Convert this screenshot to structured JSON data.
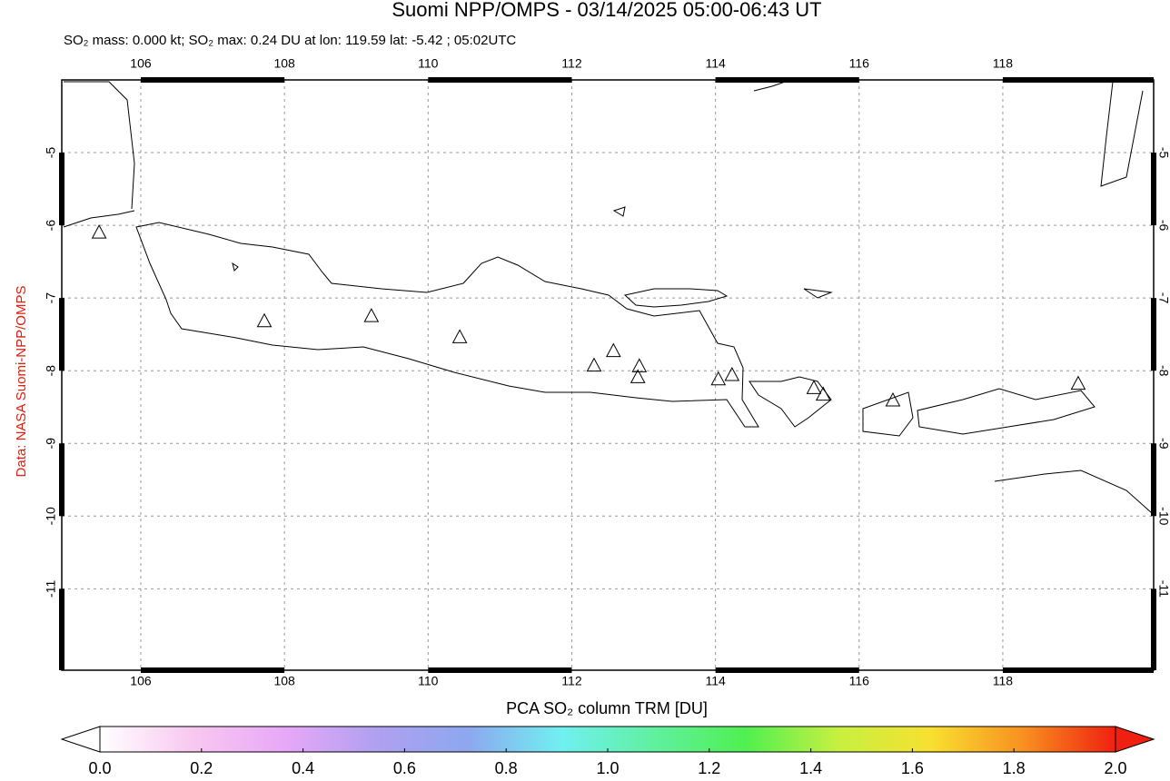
{
  "chart_data": {
    "type": "map",
    "title": "Suomi NPP/OMPS - 03/14/2025 05:00-06:43 UT",
    "subtitle": "SO₂ mass: 0.000 kt; SO₂ max: 0.24 DU at lon: 119.59 lat: -5.42 ; 05:02UTC",
    "credit": "Data: NASA Suomi-NPP/OMPS",
    "xlim": [
      104.9,
      120.1
    ],
    "ylim": [
      -12.12,
      -4.0
    ],
    "xticks": [
      106,
      108,
      110,
      112,
      114,
      116,
      118
    ],
    "yticks": [
      -5,
      -6,
      -7,
      -8,
      -9,
      -10,
      -11
    ],
    "grid": true,
    "markers": {
      "lon": [
        105.42,
        107.72,
        109.21,
        110.44,
        112.31,
        112.58,
        112.94,
        112.92,
        114.04,
        114.23,
        115.37,
        115.5,
        116.47,
        119.05
      ],
      "lat": [
        -6.1,
        -7.32,
        -7.25,
        -7.54,
        -7.93,
        -7.73,
        -7.94,
        -8.09,
        -8.12,
        -8.06,
        -8.24,
        -8.33,
        -8.41,
        -8.18
      ]
    },
    "colorbar": {
      "label": "PCA SO₂ column TRM [DU]",
      "lim": [
        0,
        2
      ],
      "ticks": [
        {
          "value": 0,
          "label": "0.0"
        },
        0.2,
        0.4,
        0.6,
        0.8,
        {
          "value": 1,
          "label": "1.0"
        },
        1.2,
        1.4,
        1.6,
        1.8,
        {
          "value": 2,
          "label": "2.0"
        }
      ],
      "colors": [
        "#ffffff",
        "#f8c8f0",
        "#e8a8f8",
        "#b0a0f0",
        "#8ca8f0",
        "#70f0f0",
        "#60f0a0",
        "#50f050",
        "#c8f040",
        "#f8e030",
        "#f89020",
        "#f02010"
      ]
    }
  }
}
